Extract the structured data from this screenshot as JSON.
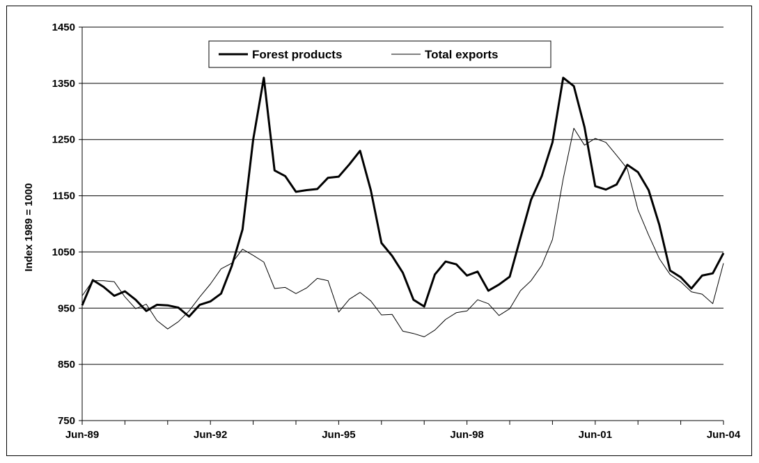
{
  "chart_data": {
    "type": "line",
    "title": "",
    "xlabel": "",
    "ylabel": "Index 1989 = 1000",
    "ylim": [
      750,
      1450
    ],
    "yticks": [
      "1450",
      "1350",
      "1250",
      "1150",
      "1050",
      "950",
      "850",
      "750"
    ],
    "xticks": [
      "Jun-89",
      "Jun-92",
      "Jun-95",
      "Jun-98",
      "Jun-01",
      "Jun-04"
    ],
    "x_unit": "quarter index from Jun-89",
    "grid": "horizontal",
    "legend_position": "top-center",
    "series": [
      {
        "name": "Forest products",
        "line_style": "thick",
        "values": [
          955,
          1000,
          988,
          972,
          980,
          965,
          945,
          956,
          955,
          951,
          935,
          956,
          962,
          976,
          1025,
          1090,
          1250,
          1360,
          1195,
          1185,
          1157,
          1160,
          1162,
          1182,
          1184,
          1206,
          1230,
          1160,
          1066,
          1043,
          1013,
          965,
          953,
          1010,
          1033,
          1028,
          1008,
          1015,
          981,
          992,
          1006,
          1075,
          1143,
          1185,
          1245,
          1360,
          1345,
          1272,
          1167,
          1161,
          1170,
          1205,
          1192,
          1160,
          1098,
          1017,
          1005,
          985,
          1008,
          1012,
          1048
        ]
      },
      {
        "name": "Total exports",
        "line_style": "thin",
        "values": [
          972,
          999,
          999,
          997,
          970,
          949,
          957,
          928,
          913,
          926,
          945,
          970,
          993,
          1020,
          1030,
          1055,
          1044,
          1032,
          985,
          987,
          976,
          986,
          1003,
          999,
          943,
          966,
          978,
          963,
          938,
          939,
          909,
          905,
          899,
          911,
          930,
          942,
          945,
          965,
          958,
          937,
          949,
          981,
          999,
          1026,
          1072,
          1180,
          1270,
          1240,
          1252,
          1245,
          1222,
          1198,
          1125,
          1080,
          1038,
          1010,
          997,
          979,
          975,
          958,
          1030
        ]
      }
    ]
  }
}
